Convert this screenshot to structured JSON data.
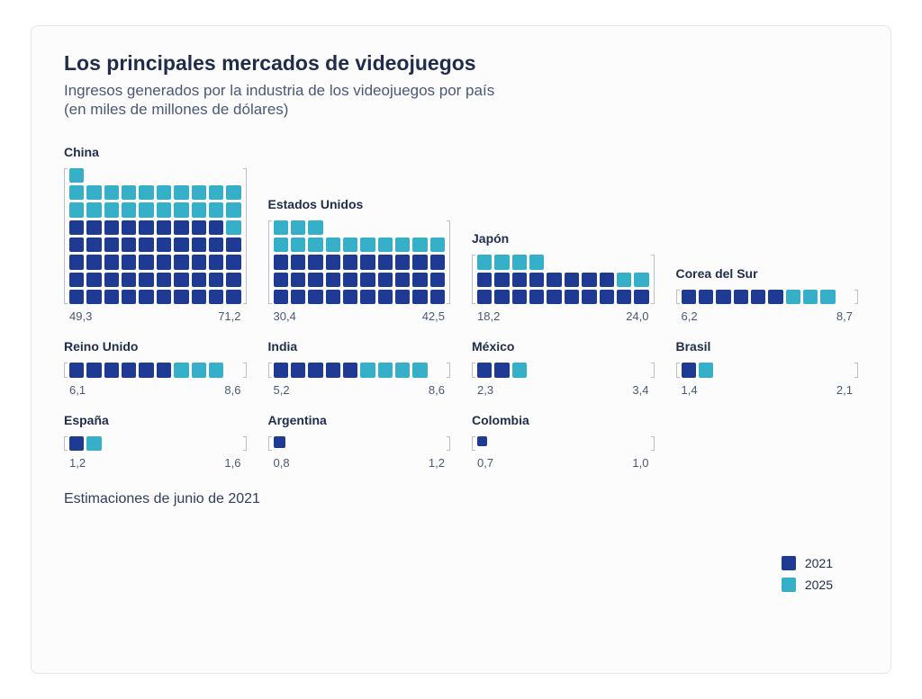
{
  "title": "Los principales mercados de videojuegos",
  "subtitle_line1": "Ingresos generados por la industria de los videojuegos por país",
  "subtitle_line2": "(en miles de millones de dólares)",
  "footnote": "Estimaciones de junio de 2021",
  "colors": {
    "color_2021": "#1f3a93",
    "color_2025": "#36b0c9",
    "background": "#fcfcfd",
    "border": "#e4e6ea",
    "text_primary": "#1f2d4a",
    "text_secondary": "#4a5876",
    "bracket": "#b9c0cc"
  },
  "picto": {
    "units_per_row": 10,
    "unit_value": 1.0,
    "rows_scale_max": 12
  },
  "legend": [
    {
      "label": "2021",
      "color_key": "color_2021"
    },
    {
      "label": "2025",
      "color_key": "color_2025"
    }
  ],
  "countries": [
    {
      "name": "China",
      "v2021": 49.3,
      "v2025": 71.2,
      "v2021_label": "49,3",
      "v2025_label": "71,2"
    },
    {
      "name": "Estados Unidos",
      "v2021": 30.4,
      "v2025": 42.5,
      "v2021_label": "30,4",
      "v2025_label": "42,5"
    },
    {
      "name": "Japón",
      "v2021": 18.2,
      "v2025": 24.0,
      "v2021_label": "18,2",
      "v2025_label": "24,0"
    },
    {
      "name": "Corea del Sur",
      "v2021": 6.2,
      "v2025": 8.7,
      "v2021_label": "6,2",
      "v2025_label": "8,7"
    },
    {
      "name": "Reino Unido",
      "v2021": 6.1,
      "v2025": 8.6,
      "v2021_label": "6,1",
      "v2025_label": "8,6"
    },
    {
      "name": "India",
      "v2021": 5.2,
      "v2025": 8.6,
      "v2021_label": "5,2",
      "v2025_label": "8,6"
    },
    {
      "name": "México",
      "v2021": 2.3,
      "v2025": 3.4,
      "v2021_label": "2,3",
      "v2025_label": "3,4"
    },
    {
      "name": "Brasil",
      "v2021": 1.4,
      "v2025": 2.1,
      "v2021_label": "1,4",
      "v2025_label": "2,1"
    },
    {
      "name": "España",
      "v2021": 1.2,
      "v2025": 1.6,
      "v2021_label": "1,2",
      "v2025_label": "1,6"
    },
    {
      "name": "Argentina",
      "v2021": 0.8,
      "v2025": 1.2,
      "v2021_label": "0,8",
      "v2025_label": "1,2"
    },
    {
      "name": "Colombia",
      "v2021": 0.7,
      "v2025": 1.0,
      "v2021_label": "0,7",
      "v2025_label": "1,0"
    }
  ]
}
